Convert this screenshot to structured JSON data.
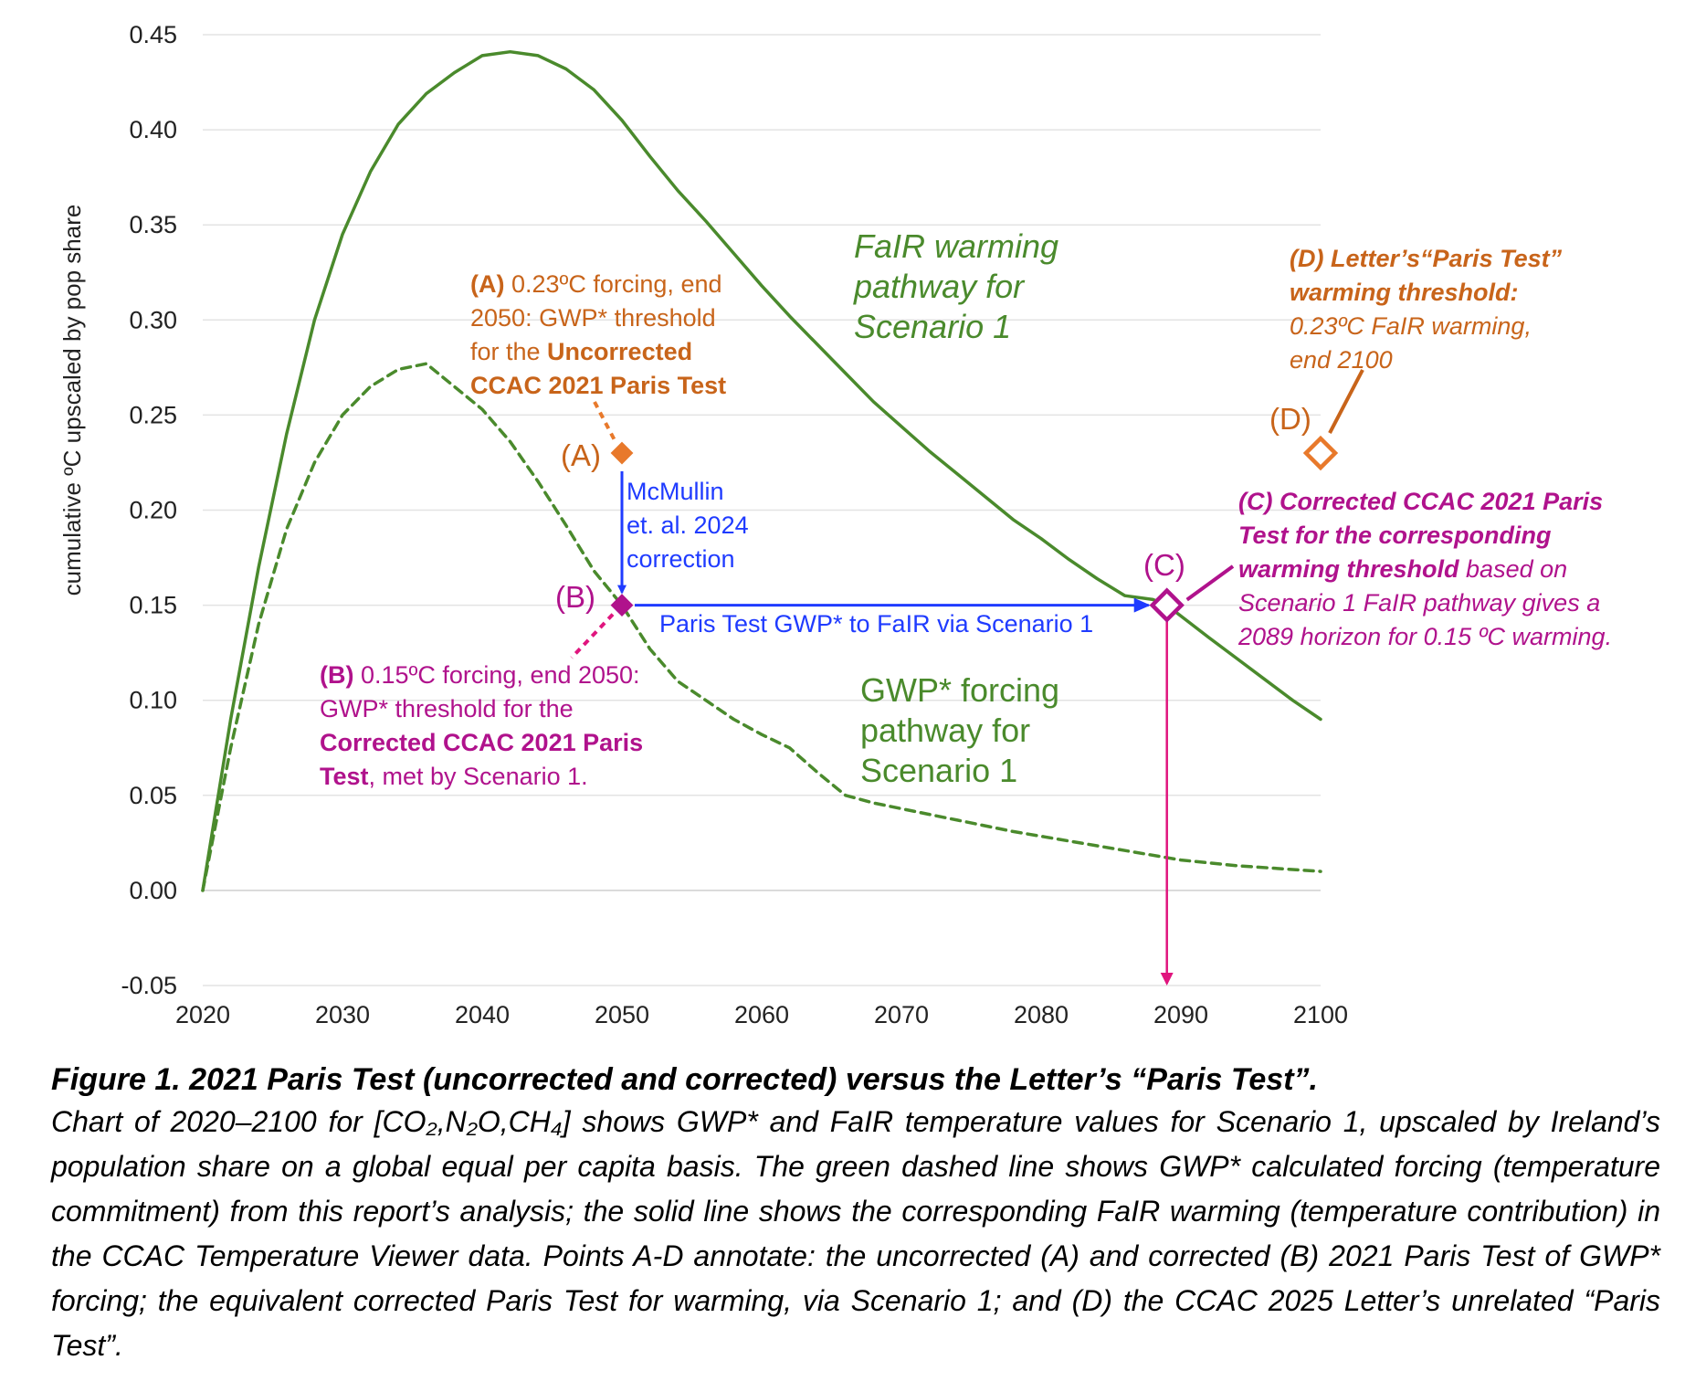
{
  "chart_data": {
    "type": "line",
    "ylabel": "cumulative ºC upscaled by pop share",
    "xlabel": "",
    "xlim": [
      2020,
      2100
    ],
    "ylim": [
      -0.05,
      0.45
    ],
    "x_ticks": [
      "2020",
      "2030",
      "2040",
      "2050",
      "2060",
      "2070",
      "2080",
      "2090",
      "2100"
    ],
    "y_ticks": [
      "0.45",
      "0.40",
      "0.35",
      "0.30",
      "0.25",
      "0.20",
      "0.15",
      "0.10",
      "0.05",
      "0.00",
      "-0.05"
    ],
    "grid": "horizontal",
    "series": [
      {
        "name": "FaIR warming pathway for Scenario 1",
        "style": "solid",
        "color": "#4a8a2c",
        "points": [
          [
            2020,
            0.0
          ],
          [
            2022,
            0.09
          ],
          [
            2024,
            0.17
          ],
          [
            2026,
            0.24
          ],
          [
            2028,
            0.3
          ],
          [
            2030,
            0.345
          ],
          [
            2032,
            0.378
          ],
          [
            2034,
            0.403
          ],
          [
            2036,
            0.419
          ],
          [
            2038,
            0.43
          ],
          [
            2040,
            0.439
          ],
          [
            2042,
            0.441
          ],
          [
            2044,
            0.439
          ],
          [
            2046,
            0.432
          ],
          [
            2048,
            0.421
          ],
          [
            2050,
            0.405
          ],
          [
            2052,
            0.386
          ],
          [
            2054,
            0.368
          ],
          [
            2056,
            0.352
          ],
          [
            2058,
            0.335
          ],
          [
            2060,
            0.318
          ],
          [
            2062,
            0.302
          ],
          [
            2064,
            0.287
          ],
          [
            2066,
            0.272
          ],
          [
            2068,
            0.257
          ],
          [
            2070,
            0.244
          ],
          [
            2072,
            0.231
          ],
          [
            2074,
            0.219
          ],
          [
            2076,
            0.207
          ],
          [
            2078,
            0.195
          ],
          [
            2080,
            0.185
          ],
          [
            2082,
            0.174
          ],
          [
            2084,
            0.164
          ],
          [
            2086,
            0.155
          ],
          [
            2088,
            0.153
          ],
          [
            2089,
            0.15
          ],
          [
            2092,
            0.133
          ],
          [
            2094,
            0.122
          ],
          [
            2096,
            0.111
          ],
          [
            2098,
            0.1
          ],
          [
            2100,
            0.09
          ]
        ]
      },
      {
        "name": "GWP* forcing pathway for Scenario 1",
        "style": "dashed",
        "color": "#4a8a2c",
        "points": [
          [
            2020,
            0.0
          ],
          [
            2022,
            0.075
          ],
          [
            2024,
            0.14
          ],
          [
            2026,
            0.19
          ],
          [
            2028,
            0.225
          ],
          [
            2030,
            0.25
          ],
          [
            2032,
            0.265
          ],
          [
            2034,
            0.274
          ],
          [
            2036,
            0.277
          ],
          [
            2038,
            0.265
          ],
          [
            2040,
            0.253
          ],
          [
            2042,
            0.236
          ],
          [
            2044,
            0.215
          ],
          [
            2046,
            0.192
          ],
          [
            2048,
            0.168
          ],
          [
            2050,
            0.15
          ],
          [
            2052,
            0.127
          ],
          [
            2054,
            0.11
          ],
          [
            2056,
            0.1
          ],
          [
            2058,
            0.09
          ],
          [
            2060,
            0.082
          ],
          [
            2062,
            0.075
          ],
          [
            2064,
            0.062
          ],
          [
            2066,
            0.05
          ],
          [
            2068,
            0.046
          ],
          [
            2070,
            0.043
          ],
          [
            2074,
            0.037
          ],
          [
            2078,
            0.031
          ],
          [
            2082,
            0.026
          ],
          [
            2086,
            0.021
          ],
          [
            2090,
            0.016
          ],
          [
            2094,
            0.013
          ],
          [
            2100,
            0.01
          ]
        ]
      }
    ],
    "points": [
      {
        "label": "(A)",
        "x": 2050,
        "y": 0.23,
        "marker": "filled-diamond",
        "color": "#e8792b"
      },
      {
        "label": "(B)",
        "x": 2050,
        "y": 0.15,
        "marker": "filled-diamond",
        "color": "#b0128c"
      },
      {
        "label": "(C)",
        "x": 2089,
        "y": 0.15,
        "marker": "open-diamond",
        "color": "#b0128c"
      },
      {
        "label": "(D)",
        "x": 2100,
        "y": 0.23,
        "marker": "open-diamond",
        "color": "#e8792b"
      }
    ],
    "annotations": {
      "a": {
        "prefix": "(A)",
        "line1_rest": " 0.23ºC forcing, end",
        "line2": "2050: GWP* threshold",
        "line3_pre": "for the ",
        "line3_bold": "Uncorrected",
        "line4": "CCAC 2021 Paris Test"
      },
      "b": {
        "prefix": "(B)",
        "line1_rest": " 0.15ºC forcing, end 2050:",
        "line2": "GWP* threshold for the",
        "line3": "Corrected CCAC 2021 Paris",
        "line4_bold": "Test",
        "line4_rest": ", met by Scenario 1."
      },
      "c": {
        "line1": "(C) Corrected CCAC 2021 Paris",
        "line2": "Test for the corresponding",
        "line3_bold": "warming threshold",
        "line3_rest": " based on",
        "line4": "Scenario 1 FaIR pathway gives a",
        "line5": "2089 horizon for 0.15 ºC warming."
      },
      "d": {
        "line1": "(D) Letter’s“Paris Test”",
        "line2": "warming threshold:",
        "line3": "0.23ºC FaIR warming,",
        "line4": "end 2100"
      },
      "correction": [
        "McMullin",
        "et. al. 2024",
        "correction"
      ],
      "horizontal_arrow": "Paris Test GWP* to FaIR via Scenario 1",
      "fair_label": [
        "FaIR warming",
        "pathway for",
        "Scenario 1"
      ],
      "gwp_label": [
        "GWP* forcing",
        "pathway for",
        "Scenario 1"
      ]
    }
  },
  "colors": {
    "green": "#4a8a2c",
    "orange": "#c8641a",
    "orange_marker": "#e8792b",
    "magenta": "#b0128c",
    "arrow_magenta": "#e0157e",
    "blue": "#1f3bff",
    "grid": "#e3e3e3"
  },
  "caption": {
    "title": "Figure 1. 2021 Paris Test (uncorrected and corrected) versus the Letter’s “Paris Test”.",
    "body": "Chart of 2020–2100 for [CO₂,N₂O,CH₄] shows GWP* and FaIR temperature values for Scenario 1, upscaled by Ireland’s population share on a global equal per capita basis. The green dashed line shows GWP* calculated forcing (temperature commitment) from this report’s analysis; the solid line shows the corresponding FaIR warming (temperature contribution) in the CCAC Temperature Viewer data. Points A-D annotate: the uncorrected (A) and corrected (B) 2021 Paris Test of GWP* forcing; the equivalent corrected Paris Test for warming, via Scenario 1; and (D) the CCAC 2025 Letter’s unrelated “Paris Test”."
  }
}
